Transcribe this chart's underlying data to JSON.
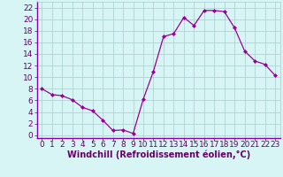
{
  "x": [
    0,
    1,
    2,
    3,
    4,
    5,
    6,
    7,
    8,
    9,
    10,
    11,
    12,
    13,
    14,
    15,
    16,
    17,
    18,
    19,
    20,
    21,
    22,
    23
  ],
  "y": [
    8.0,
    7.0,
    6.8,
    6.1,
    4.8,
    4.2,
    2.6,
    0.8,
    0.9,
    0.3,
    6.2,
    11.0,
    17.0,
    17.5,
    20.3,
    18.9,
    21.5,
    21.5,
    21.3,
    18.5,
    14.5,
    12.8,
    12.2,
    10.3
  ],
  "line_color": "#990099",
  "marker": "D",
  "marker_size": 2.0,
  "bg_color": "#d8f5f5",
  "grid_color": "#aacccc",
  "border_color": "#8800aa",
  "xlabel": "Windchill (Refroidissement éolien,°C)",
  "xlabel_color": "#660066",
  "xlabel_fontsize": 7,
  "tick_color": "#660066",
  "tick_fontsize": 6.5,
  "ylim": [
    -0.5,
    23
  ],
  "xlim": [
    -0.5,
    23.5
  ],
  "yticks": [
    0,
    2,
    4,
    6,
    8,
    10,
    12,
    14,
    16,
    18,
    20,
    22
  ],
  "xticks": [
    0,
    1,
    2,
    3,
    4,
    5,
    6,
    7,
    8,
    9,
    10,
    11,
    12,
    13,
    14,
    15,
    16,
    17,
    18,
    19,
    20,
    21,
    22,
    23
  ]
}
